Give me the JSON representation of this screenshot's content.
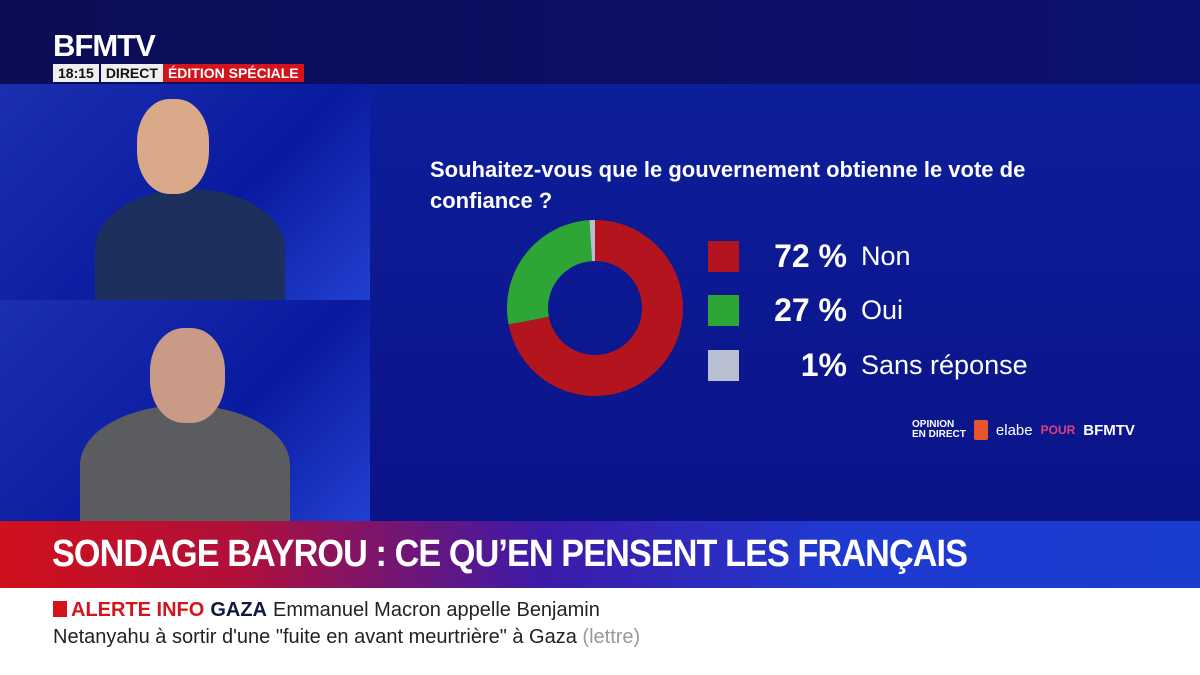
{
  "header": {
    "logo": "BFMTV",
    "time": "18:15",
    "direct": "DIRECT",
    "edition": "ÉDITION SPÉCIALE"
  },
  "chart_data": {
    "type": "pie",
    "donut": true,
    "title": "Souhaitez-vous que le gouvernement obtienne le vote de confiance ?",
    "slices": [
      {
        "label": "Non",
        "value": 72,
        "display": "72 %",
        "color": "#b3141e"
      },
      {
        "label": "Oui",
        "value": 27,
        "display": "27 %",
        "color": "#2ea636"
      },
      {
        "label": "Sans réponse",
        "value": 1,
        "display": "1%",
        "color": "#b8bfd0"
      }
    ],
    "legend": "right"
  },
  "source": {
    "line1": "OPINION",
    "line2": "EN DIRECT",
    "brand": "elabe",
    "pour": "POUR",
    "channel": "BFMTV"
  },
  "banner": "SONDAGE BAYROU : CE QU’EN PENSENT LES FRANÇAIS",
  "ticker": {
    "alert": "ALERTE INFO",
    "topic": "GAZA",
    "line1": "Emmanuel Macron appelle Benjamin",
    "line2": "Netanyahu à sortir d'une \"fuite en avant meurtrière\" à Gaza",
    "note": "(lettre)"
  }
}
